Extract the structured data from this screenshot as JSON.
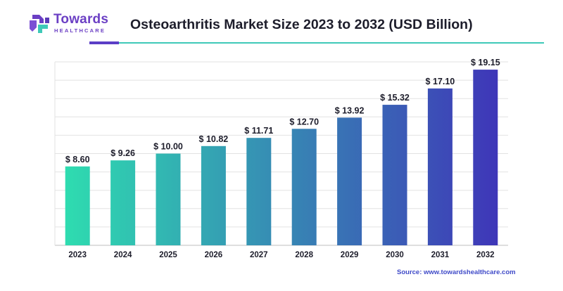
{
  "brand": {
    "name": "Towards",
    "sub": "HEALTHCARE",
    "logo_icon": "medical-cross-logo-icon",
    "colors": {
      "purple": "#6b3fc4",
      "teal": "#3ec9b8"
    }
  },
  "title": "Osteoarthritis Market Size 2023 to 2032 (USD Billion)",
  "source": "Source: www.towardshealthcare.com",
  "chart_data": {
    "type": "bar",
    "title": "Osteoarthritis Market Size 2023 to 2032 (USD Billion)",
    "xlabel": "",
    "ylabel": "",
    "categories": [
      "2023",
      "2024",
      "2025",
      "2026",
      "2027",
      "2028",
      "2029",
      "2030",
      "2031",
      "2032"
    ],
    "values": [
      8.6,
      9.26,
      10.0,
      10.82,
      11.71,
      12.7,
      13.92,
      15.32,
      17.1,
      19.15
    ],
    "value_labels": [
      "$ 8.60",
      "$ 9.26",
      "$ 10.00",
      "$ 10.82",
      "$ 11.71",
      "$ 12.70",
      "$ 13.92",
      "$ 15.32",
      "$ 17.10",
      "$ 19.15"
    ],
    "ylim": [
      0,
      20
    ],
    "grid": true,
    "legend": "none",
    "bar_gradient": {
      "start": "#2ee0b0",
      "end": "#3f32b8"
    }
  }
}
